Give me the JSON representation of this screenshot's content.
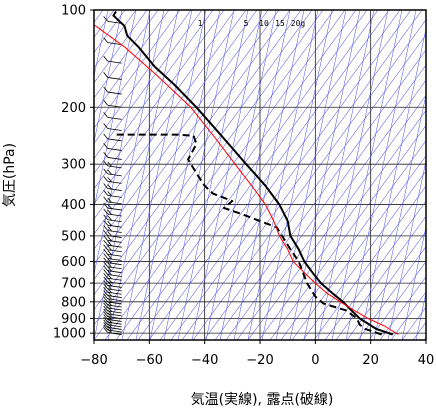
{
  "chart_data": {
    "type": "line",
    "title": "",
    "xlabel": "気温(実線), 露点(破線)",
    "ylabel": "気圧(hPa)",
    "xlim": [
      -80,
      40
    ],
    "ylim": [
      1050,
      100
    ],
    "y_scale": "log",
    "x_ticks": [
      "−80",
      "−60",
      "−40",
      "−20",
      "0",
      "20",
      "40"
    ],
    "y_ticks": [
      "100",
      "200",
      "300",
      "400",
      "500",
      "600",
      "700",
      "800",
      "900",
      "1000"
    ],
    "grid": true,
    "mixing_ratio_labels": [
      "1",
      "5",
      "10",
      "15",
      "20g"
    ],
    "series": [
      {
        "line_style": "solid",
        "color": "#000000",
        "points": [
          [
            28,
            1010
          ],
          [
            22,
            970
          ],
          [
            16,
            900
          ],
          [
            13,
            850
          ],
          [
            10,
            800
          ],
          [
            6,
            750
          ],
          [
            2,
            700
          ],
          [
            -1,
            650
          ],
          [
            -4,
            600
          ],
          [
            -6,
            550
          ],
          [
            -9,
            500
          ],
          [
            -10,
            450
          ],
          [
            -13,
            400
          ],
          [
            -18,
            350
          ],
          [
            -25,
            300
          ],
          [
            -33,
            250
          ],
          [
            -43,
            200
          ],
          [
            -51,
            170
          ],
          [
            -58,
            150
          ],
          [
            -64,
            130
          ],
          [
            -68,
            120
          ],
          [
            -69,
            112
          ],
          [
            -71,
            108
          ],
          [
            -73,
            104
          ],
          [
            -72,
            101
          ]
        ]
      },
      {
        "line_style": "dashed",
        "color": "#000000",
        "points": [
          [
            24,
            1010
          ],
          [
            18,
            970
          ],
          [
            16,
            940
          ],
          [
            15,
            900
          ],
          [
            11,
            850
          ],
          [
            3,
            810
          ],
          [
            0,
            770
          ],
          [
            -3,
            700
          ],
          [
            -6,
            600
          ],
          [
            -9,
            550
          ],
          [
            -12,
            500
          ],
          [
            -14,
            470
          ],
          [
            -20,
            450
          ],
          [
            -26,
            430
          ],
          [
            -33,
            410
          ],
          [
            -30,
            390
          ],
          [
            -37,
            370
          ],
          [
            -40,
            350
          ],
          [
            -43,
            320
          ],
          [
            -46,
            290
          ],
          [
            -43,
            260
          ],
          [
            -44,
            245
          ],
          [
            -50,
            243
          ],
          [
            -64,
            243
          ],
          [
            -72,
            243
          ]
        ]
      },
      {
        "line_style": "solid",
        "color": "#ff0000",
        "points": [
          [
            30,
            1010
          ],
          [
            25,
            950
          ],
          [
            19,
            900
          ],
          [
            14,
            850
          ],
          [
            9,
            800
          ],
          [
            4,
            750
          ],
          [
            0,
            700
          ],
          [
            -4,
            650
          ],
          [
            -8,
            600
          ],
          [
            -10,
            550
          ],
          [
            -13,
            500
          ],
          [
            -15,
            450
          ],
          [
            -18,
            400
          ],
          [
            -23,
            350
          ],
          [
            -29,
            300
          ],
          [
            -36,
            250
          ],
          [
            -45,
            200
          ],
          [
            -57,
            160
          ],
          [
            -69,
            130
          ],
          [
            -82,
            108
          ]
        ]
      }
    ],
    "barb_column_x": -70
  }
}
